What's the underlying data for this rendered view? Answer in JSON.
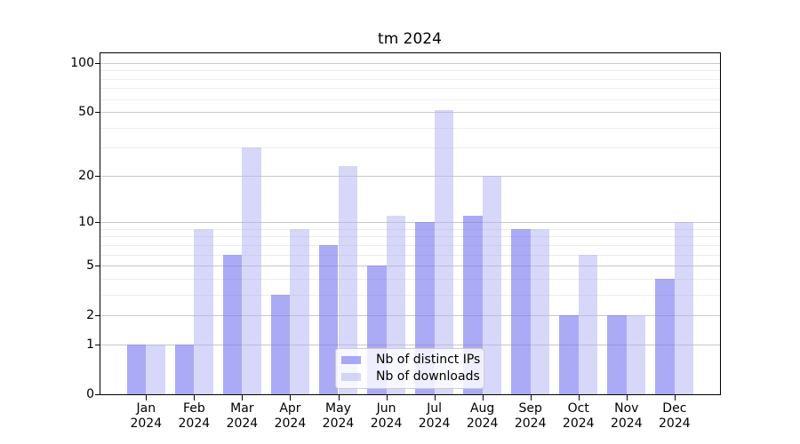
{
  "chart_data": {
    "type": "bar",
    "title": "tm 2024",
    "categories": [
      "Jan",
      "Feb",
      "Mar",
      "Apr",
      "May",
      "Jun",
      "Jul",
      "Aug",
      "Sep",
      "Oct",
      "Nov",
      "Dec"
    ],
    "x_tick_line2": "2024",
    "series": [
      {
        "name": "Nb of distinct IPs",
        "color": "rgba(120,120,242,0.63)",
        "values": [
          1,
          1,
          6,
          3,
          7,
          5,
          10,
          11,
          9,
          2,
          2,
          4
        ]
      },
      {
        "name": "Nb of downloads",
        "color": "rgba(175,175,245,0.50)",
        "values": [
          1,
          9,
          30,
          9,
          23,
          11,
          51,
          20,
          9,
          6,
          2,
          10
        ]
      }
    ],
    "yscale": "log1p",
    "ylim": [
      0,
      116
    ],
    "yticks_major": [
      0,
      1,
      2,
      5,
      10,
      20,
      50,
      100
    ],
    "yticks_minor": [
      3,
      4,
      6,
      7,
      8,
      9,
      30,
      40,
      60,
      70,
      80,
      90
    ],
    "grid": true,
    "legend_position": "lower center",
    "xlabel": "",
    "ylabel": ""
  },
  "colors": {
    "grid_major": "#c9c9c9",
    "grid_minor": "#ededed",
    "spine": "#000000",
    "legend_bg": "rgba(255,255,255,0.8)",
    "legend_border": "#cccccc",
    "text": "#000000"
  }
}
